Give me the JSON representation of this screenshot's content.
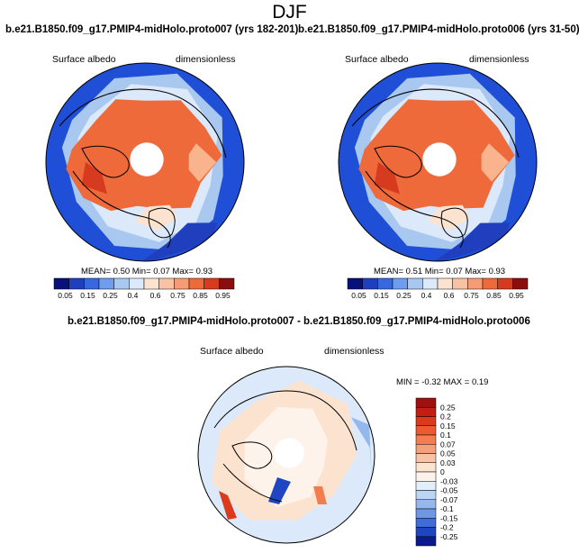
{
  "title": "DJF",
  "colors": {
    "dark_blue": "#08107a",
    "blue": "#1f4fd6",
    "light_blue": "#a8c8f0",
    "pale_blue": "#dbe9fb",
    "cream": "#fbe3cf",
    "peach": "#f9b48d",
    "orange_red": "#ef6a3a",
    "dark_red": "#8c0d0d",
    "coast": "#000000",
    "pole_hole": "#ffffff"
  },
  "chart_data": [
    {
      "type": "heatmap",
      "projection": "north-polar-stereographic",
      "title": "b.e21.B1850.f09_g17.PMIP4-midHolo.proto007 (yrs 182-201)",
      "variable": "Surface albedo",
      "units": "dimensionless",
      "stats": {
        "mean_label": "MEAN=",
        "mean": "0.50",
        "min_label": "Min=",
        "min": "0.07",
        "max_label": "Max=",
        "max": "0.93"
      },
      "colorbar": {
        "orientation": "horizontal",
        "ticks": [
          "0.05",
          "0.15",
          "0.25",
          "0.4",
          "0.6",
          "0.75",
          "0.85",
          "0.95"
        ],
        "colors": [
          "#08107a",
          "#1f3fbf",
          "#3868e0",
          "#6e9cee",
          "#a8c8f0",
          "#dbe9fb",
          "#fbe3cf",
          "#f9c2a4",
          "#f59c76",
          "#ef6a3a",
          "#d63a1f",
          "#8c0d0d"
        ]
      }
    },
    {
      "type": "heatmap",
      "projection": "north-polar-stereographic",
      "title": "b.e21.B1850.f09_g17.PMIP4-midHolo.proto006 (yrs 31-50)",
      "variable": "Surface albedo",
      "units": "dimensionless",
      "stats": {
        "mean_label": "MEAN=",
        "mean": "0.51",
        "min_label": "Min=",
        "min": "0.07",
        "max_label": "Max=",
        "max": "0.93"
      },
      "colorbar": {
        "orientation": "horizontal",
        "ticks": [
          "0.05",
          "0.15",
          "0.25",
          "0.4",
          "0.6",
          "0.75",
          "0.85",
          "0.95"
        ],
        "colors": [
          "#08107a",
          "#1f3fbf",
          "#3868e0",
          "#6e9cee",
          "#a8c8f0",
          "#dbe9fb",
          "#fbe3cf",
          "#f9c2a4",
          "#f59c76",
          "#ef6a3a",
          "#d63a1f",
          "#8c0d0d"
        ]
      }
    },
    {
      "type": "heatmap",
      "projection": "north-polar-stereographic",
      "title": "b.e21.B1850.f09_g17.PMIP4-midHolo.proto007 - b.e21.B1850.f09_g17.PMIP4-midHolo.proto006",
      "variable": "Surface albedo",
      "units": "dimensionless",
      "stats": {
        "min_label": "MIN =",
        "min": "-0.32",
        "max_label": "MAX =",
        "max": "0.19"
      },
      "colorbar": {
        "orientation": "vertical",
        "ticks": [
          "0.25",
          "0.2",
          "0.15",
          "0.1",
          "0.07",
          "0.05",
          "0.03",
          "0",
          "-0.03",
          "-0.05",
          "-0.07",
          "-0.1",
          "-0.15",
          "-0.2",
          "-0.25"
        ],
        "colors": [
          "#a01010",
          "#c41e12",
          "#dc3a1c",
          "#ee5a30",
          "#f47d50",
          "#f6a07a",
          "#f8c2a4",
          "#fbe3cf",
          "#fdf3ea",
          "#e3eefb",
          "#bdd5f4",
          "#94b7ec",
          "#6f97e2",
          "#3f6cd8",
          "#1f45c2",
          "#0a1a8c"
        ]
      }
    }
  ]
}
